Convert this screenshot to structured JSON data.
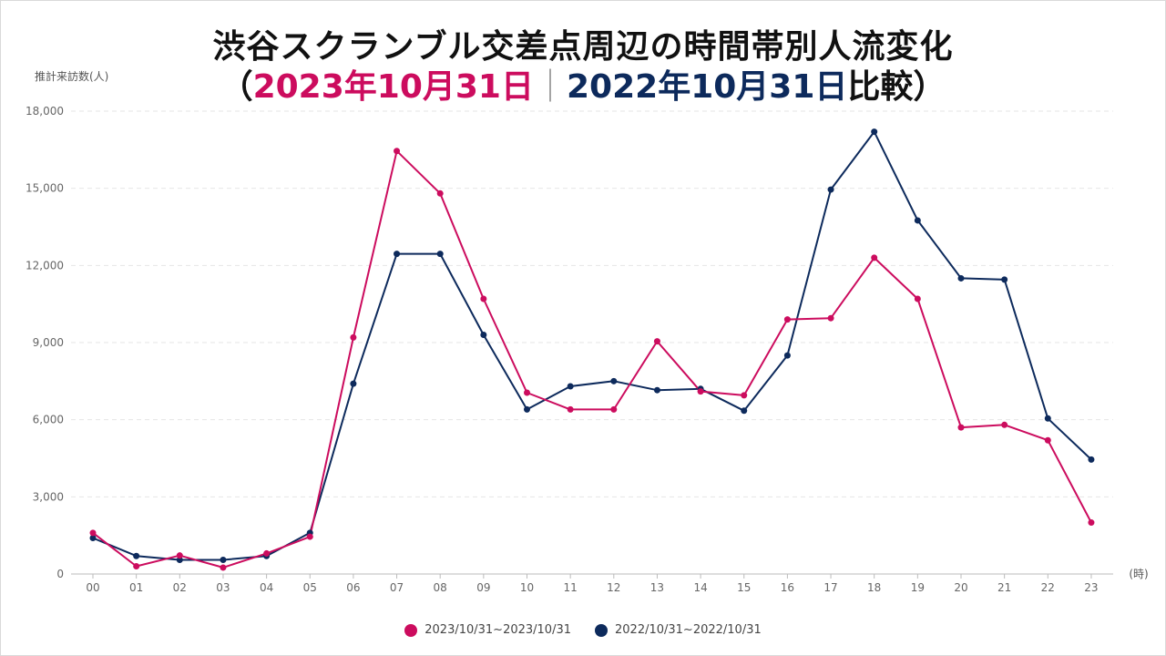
{
  "title": {
    "line1": "渋谷スクランブル交差点周辺の時間帯別人流変化",
    "open_paren": "（",
    "date_2023": "2023年10月31日",
    "separator": "｜",
    "date_2022": "2022年10月31日",
    "compare": "比較",
    "close_paren": "）"
  },
  "colors": {
    "series_2023": "#cc0c5e",
    "series_2022": "#0d2a5c",
    "grid": "#e6e6e6",
    "axis_text": "#666666"
  },
  "chart_data": {
    "type": "line",
    "ylabel": "推計来訪数(人)",
    "xlabel": "(時)",
    "ylim": [
      0,
      18000
    ],
    "yticks": [
      0,
      3000,
      6000,
      9000,
      12000,
      15000,
      18000
    ],
    "ytick_labels": [
      "0",
      "3,000",
      "6,000",
      "9,000",
      "12,000",
      "15,000",
      "18,000"
    ],
    "categories": [
      "00",
      "01",
      "02",
      "03",
      "04",
      "05",
      "06",
      "07",
      "08",
      "09",
      "10",
      "11",
      "12",
      "13",
      "14",
      "15",
      "16",
      "17",
      "18",
      "19",
      "20",
      "21",
      "22",
      "23"
    ],
    "grid": "horizontal dashed",
    "legend_position": "bottom-center",
    "series": [
      {
        "name": "2023/10/31~2023/10/31",
        "color": "#cc0c5e",
        "values": [
          1600,
          300,
          720,
          250,
          800,
          1450,
          9200,
          16450,
          14800,
          10700,
          7050,
          6400,
          6400,
          9050,
          7100,
          6950,
          9900,
          9950,
          12300,
          10700,
          5700,
          5800,
          5200,
          2000
        ]
      },
      {
        "name": "2022/10/31~2022/10/31",
        "color": "#0d2a5c",
        "values": [
          1400,
          700,
          550,
          550,
          700,
          1600,
          7400,
          12450,
          12450,
          9300,
          6400,
          7300,
          7500,
          7150,
          7200,
          6350,
          8500,
          14950,
          17200,
          13750,
          11500,
          11450,
          6050,
          4450
        ]
      }
    ]
  }
}
